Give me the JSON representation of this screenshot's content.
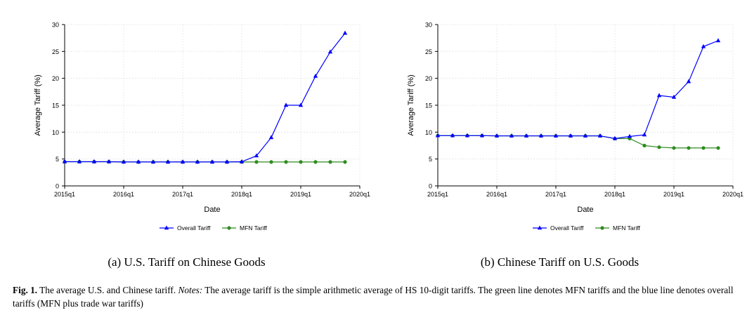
{
  "colors": {
    "overall": "#0000ff",
    "mfn": "#2e8b1f",
    "axis": "#000000",
    "grid": "#e4e4e4"
  },
  "chart_data": [
    {
      "type": "line",
      "title": "",
      "xlabel": "Date",
      "ylabel": "Average Tariff (%)",
      "xlim": [
        "2015q1",
        "2020q1"
      ],
      "ylim": [
        0,
        30
      ],
      "xticks": [
        "2015q1",
        "2016q1",
        "2017q1",
        "2018q1",
        "2019q1",
        "2020q1"
      ],
      "yticks": [
        "0",
        "5",
        "10",
        "15",
        "20",
        "25",
        "30"
      ],
      "grid": true,
      "legend": "bottom",
      "x": [
        "2015q1",
        "2015q2",
        "2015q3",
        "2015q4",
        "2016q1",
        "2016q2",
        "2016q3",
        "2016q4",
        "2017q1",
        "2017q2",
        "2017q3",
        "2017q4",
        "2018q1",
        "2018q2",
        "2018q3",
        "2018q4",
        "2019q1",
        "2019q2",
        "2019q3",
        "2019q4"
      ],
      "series": [
        {
          "name": "Overall Tariff",
          "marker": "triangle",
          "values": [
            4.5,
            4.5,
            4.5,
            4.5,
            4.45,
            4.45,
            4.45,
            4.45,
            4.45,
            4.45,
            4.45,
            4.45,
            4.5,
            5.6,
            9.0,
            15.0,
            15.0,
            20.4,
            24.9,
            28.4
          ]
        },
        {
          "name": "MFN Tariff",
          "marker": "circle",
          "values": [
            4.5,
            4.5,
            4.5,
            4.5,
            4.45,
            4.45,
            4.45,
            4.45,
            4.45,
            4.45,
            4.45,
            4.45,
            4.45,
            4.45,
            4.45,
            4.45,
            4.45,
            4.45,
            4.45,
            4.45
          ]
        }
      ]
    },
    {
      "type": "line",
      "title": "",
      "xlabel": "Date",
      "ylabel": "Average Tariff (%)",
      "xlim": [
        "2015q1",
        "2020q1"
      ],
      "ylim": [
        0,
        30
      ],
      "xticks": [
        "2015q1",
        "2016q1",
        "2017q1",
        "2018q1",
        "2019q1",
        "2020q1"
      ],
      "yticks": [
        "0",
        "5",
        "10",
        "15",
        "20",
        "25",
        "30"
      ],
      "grid": true,
      "legend": "bottom",
      "x": [
        "2015q1",
        "2015q2",
        "2015q3",
        "2015q4",
        "2016q1",
        "2016q2",
        "2016q3",
        "2016q4",
        "2017q1",
        "2017q2",
        "2017q3",
        "2017q4",
        "2018q1",
        "2018q2",
        "2018q3",
        "2018q4",
        "2019q1",
        "2019q2",
        "2019q3",
        "2019q4"
      ],
      "series": [
        {
          "name": "Overall Tariff",
          "marker": "triangle",
          "values": [
            9.35,
            9.35,
            9.35,
            9.35,
            9.3,
            9.3,
            9.3,
            9.3,
            9.3,
            9.3,
            9.3,
            9.3,
            8.8,
            9.2,
            9.5,
            16.8,
            16.5,
            19.4,
            25.9,
            27.0
          ]
        },
        {
          "name": "MFN Tariff",
          "marker": "circle",
          "values": [
            9.35,
            9.35,
            9.35,
            9.35,
            9.3,
            9.3,
            9.3,
            9.3,
            9.3,
            9.3,
            9.3,
            9.3,
            8.8,
            8.8,
            7.5,
            7.2,
            7.05,
            7.05,
            7.05,
            7.05
          ]
        }
      ]
    }
  ],
  "subcaptions": [
    "(a) U.S. Tariff on Chinese Goods",
    "(b) Chinese Tariff on U.S. Goods"
  ],
  "caption": {
    "label": "Fig. 1.",
    "text1": " The average U.S. and Chinese tariff. ",
    "notes_label": "Notes:",
    "text2": " The average tariff is the simple arithmetic average of HS 10-digit tariffs. The green line denotes MFN tariffs and the blue line denotes overall tariffs (MFN plus trade war tariffs)"
  }
}
